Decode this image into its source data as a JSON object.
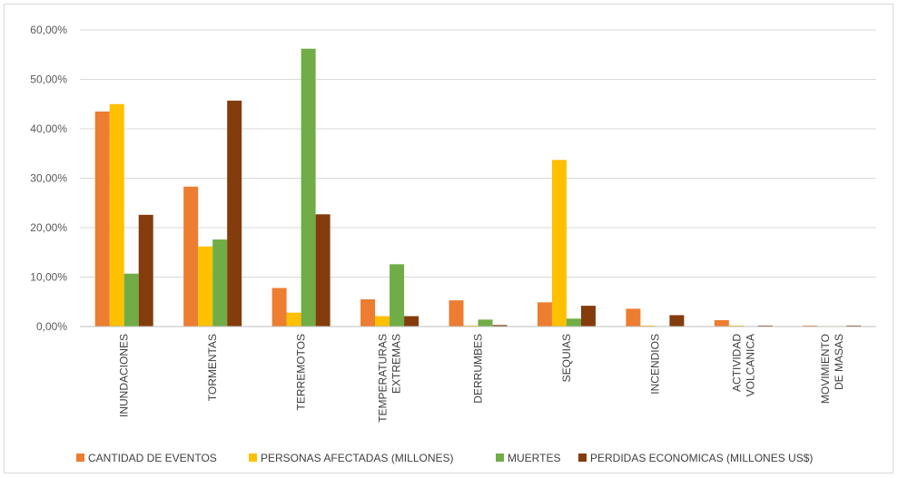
{
  "chart_data": {
    "type": "bar",
    "title": "",
    "xlabel": "",
    "ylabel": "",
    "ylim": [
      0,
      60
    ],
    "y_ticks": [
      "0,00%",
      "10,00%",
      "20,00%",
      "30,00%",
      "40,00%",
      "50,00%",
      "60,00%"
    ],
    "grid": true,
    "legend_position": "bottom",
    "categories": [
      [
        "INUNDACIONES"
      ],
      [
        "TORMENTAS"
      ],
      [
        "TERREMOTOS"
      ],
      [
        "TEMPERATURAS",
        "EXTREMAS"
      ],
      [
        "DERRUMBES"
      ],
      [
        "SEQUIAS"
      ],
      [
        "INCENDIOS"
      ],
      [
        "ACTIVIDAD",
        "VOLCANICA"
      ],
      [
        "MOVIMIENTO",
        "DE MASAS"
      ]
    ],
    "series": [
      {
        "name": "CANTIDAD DE EVENTOS",
        "color": "#ed7d31",
        "values": [
          43.5,
          28.3,
          7.8,
          5.5,
          5.3,
          4.9,
          3.6,
          1.3,
          0.2
        ]
      },
      {
        "name": "PERSONAS AFECTADAS (MILLONES)",
        "color": "#ffc000",
        "values": [
          45.0,
          16.2,
          2.8,
          2.1,
          0.2,
          33.7,
          0.2,
          0.2,
          0.1
        ]
      },
      {
        "name": "MUERTES",
        "color": "#70ad47",
        "values": [
          10.7,
          17.6,
          56.2,
          12.6,
          1.4,
          1.6,
          0.1,
          0.1,
          0.1
        ]
      },
      {
        "name": "PERDIDAS ECONOMICAS (MILLONES US$)",
        "color": "#843c0c",
        "values": [
          22.6,
          45.7,
          22.7,
          2.1,
          0.3,
          4.2,
          2.3,
          0.2,
          0.2
        ]
      }
    ]
  }
}
